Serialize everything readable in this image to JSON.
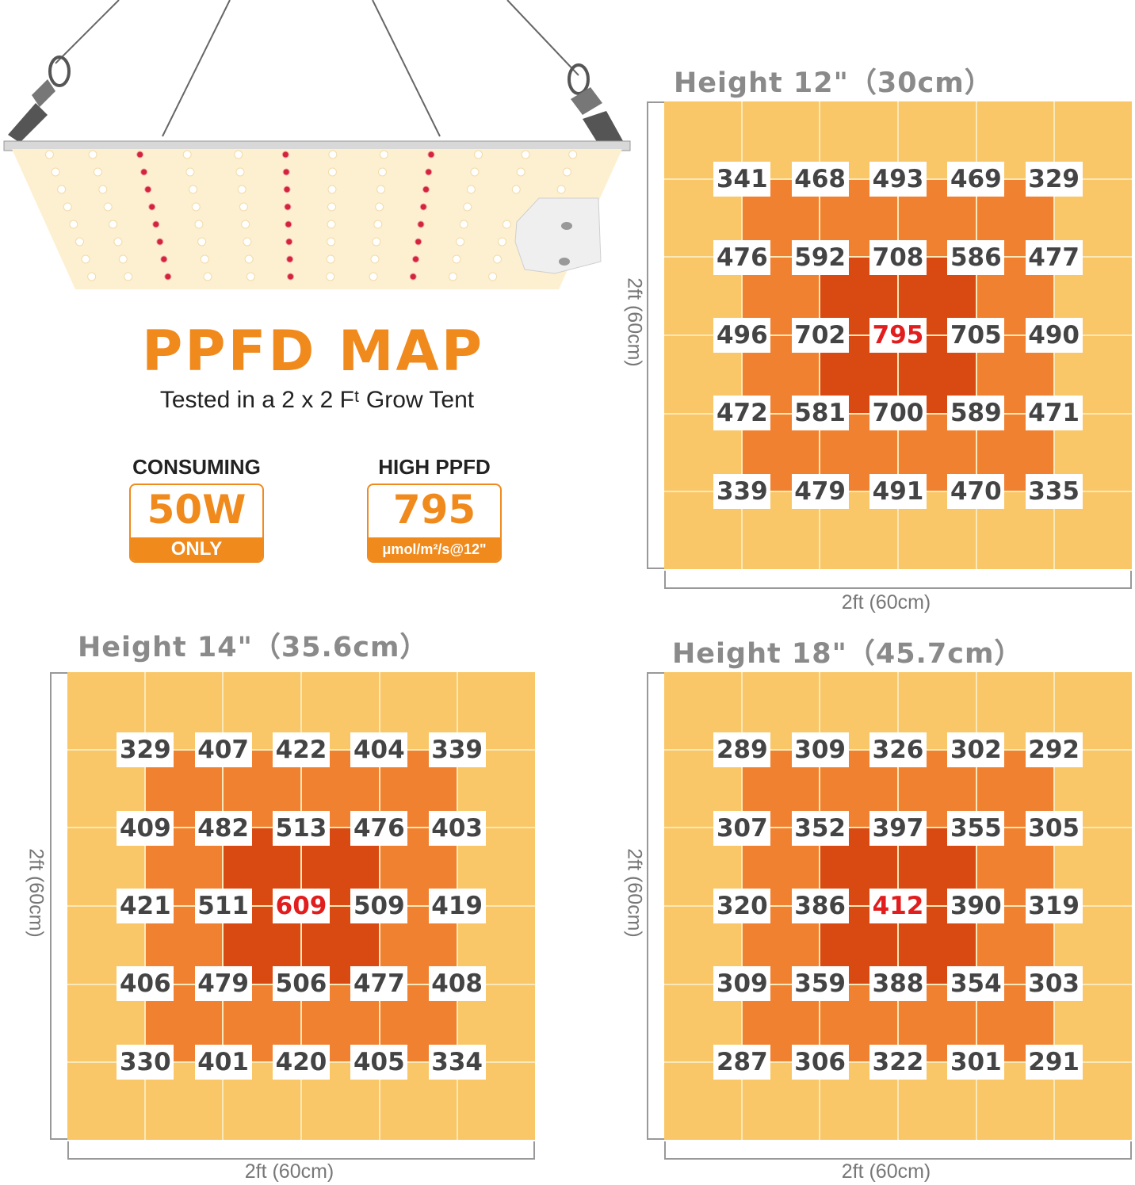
{
  "header": {
    "title": "PPFD MAP",
    "subtitle": "Tested in a 2 x 2 Fᵗ Grow Tent"
  },
  "stats": {
    "consuming": {
      "label": "CONSUMING",
      "value": "50W",
      "note": "ONLY"
    },
    "high_ppfd": {
      "label": "HIGH PPFD",
      "value": "795",
      "note": "μmol/m²/s@12\""
    }
  },
  "colors": {
    "accent": "#f08a1c",
    "outer_zone": "#f9c768",
    "mid_zone": "#f08131",
    "center_zone": "#d84a12",
    "peak_text": "#e11d1d"
  },
  "maps": [
    {
      "id": "h12",
      "title": "Height 12\"（30cm）",
      "side_label": "2ft (60cm)",
      "bottom_label": "2ft (60cm)",
      "peak": [
        2,
        2
      ],
      "values": [
        [
          "341",
          "468",
          "493",
          "469",
          "329"
        ],
        [
          "476",
          "592",
          "708",
          "586",
          "477"
        ],
        [
          "496",
          "702",
          "795",
          "705",
          "490"
        ],
        [
          "472",
          "581",
          "700",
          "589",
          "471"
        ],
        [
          "339",
          "479",
          "491",
          "470",
          "335"
        ]
      ]
    },
    {
      "id": "h14",
      "title": "Height 14\"（35.6cm）",
      "side_label": "2ft (60cm)",
      "bottom_label": "2ft (60cm)",
      "peak": [
        2,
        2
      ],
      "values": [
        [
          "329",
          "407",
          "422",
          "404",
          "339"
        ],
        [
          "409",
          "482",
          "513",
          "476",
          "403"
        ],
        [
          "421",
          "511",
          "609",
          "509",
          "419"
        ],
        [
          "406",
          "479",
          "506",
          "477",
          "408"
        ],
        [
          "330",
          "401",
          "420",
          "405",
          "334"
        ]
      ]
    },
    {
      "id": "h18",
      "title": "Height 18\"（45.7cm）",
      "side_label": "2ft (60cm)",
      "bottom_label": "2ft (60cm)",
      "peak": [
        2,
        2
      ],
      "values": [
        [
          "289",
          "309",
          "326",
          "302",
          "292"
        ],
        [
          "307",
          "352",
          "397",
          "355",
          "305"
        ],
        [
          "320",
          "386",
          "412",
          "390",
          "319"
        ],
        [
          "309",
          "359",
          "388",
          "354",
          "303"
        ],
        [
          "287",
          "306",
          "322",
          "301",
          "291"
        ]
      ]
    }
  ]
}
